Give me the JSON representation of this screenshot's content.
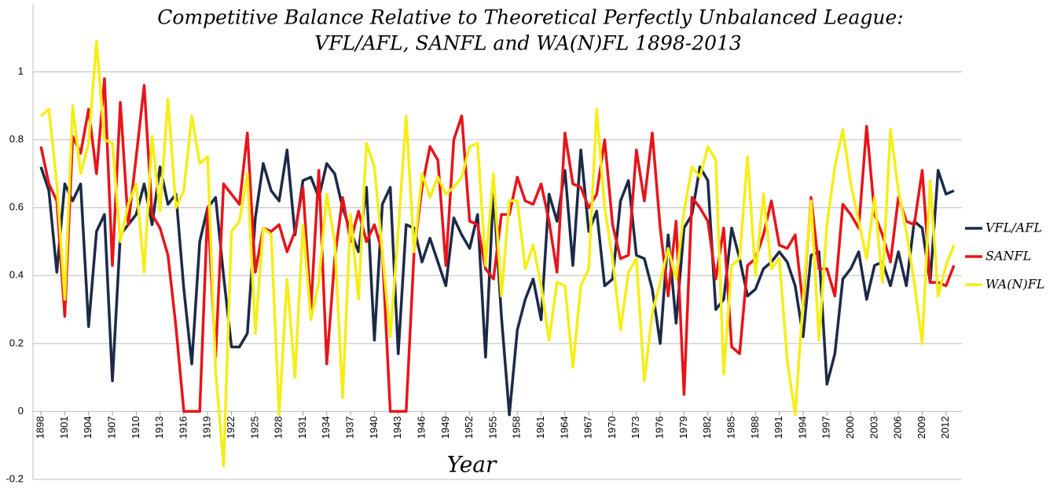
{
  "chart_data": {
    "type": "line",
    "title": [
      "Competitive Balance Relative to Theoretical Perfectly Unbalanced League:",
      "VFL/AFL, SANFL and WA(N)FL 1898-2013"
    ],
    "x_label": "Year",
    "x": [
      1898,
      1899,
      1900,
      1901,
      1902,
      1903,
      1904,
      1905,
      1906,
      1907,
      1908,
      1909,
      1910,
      1911,
      1912,
      1913,
      1914,
      1915,
      1916,
      1917,
      1918,
      1919,
      1920,
      1921,
      1922,
      1923,
      1924,
      1925,
      1926,
      1927,
      1928,
      1929,
      1930,
      1931,
      1932,
      1933,
      1934,
      1935,
      1936,
      1937,
      1938,
      1939,
      1940,
      1941,
      1942,
      1943,
      1944,
      1945,
      1946,
      1947,
      1948,
      1949,
      1950,
      1951,
      1952,
      1953,
      1954,
      1955,
      1956,
      1957,
      1958,
      1959,
      1960,
      1961,
      1962,
      1963,
      1964,
      1965,
      1966,
      1967,
      1968,
      1969,
      1970,
      1971,
      1972,
      1973,
      1974,
      1975,
      1976,
      1977,
      1978,
      1979,
      1980,
      1981,
      1982,
      1983,
      1984,
      1985,
      1986,
      1987,
      1988,
      1989,
      1990,
      1991,
      1992,
      1993,
      1994,
      1995,
      1996,
      1997,
      1998,
      1999,
      2000,
      2001,
      2002,
      2003,
      2004,
      2005,
      2006,
      2007,
      2008,
      2009,
      2010,
      2011,
      2012,
      2013
    ],
    "series": [
      {
        "name": "VFL/AFL",
        "color": "#1c2a48",
        "values": [
          0.72,
          0.65,
          0.41,
          0.67,
          0.62,
          0.67,
          0.25,
          0.53,
          0.58,
          0.09,
          0.52,
          0.55,
          0.58,
          0.67,
          0.55,
          0.72,
          0.61,
          0.64,
          0.36,
          0.14,
          0.5,
          0.6,
          0.63,
          0.4,
          0.19,
          0.19,
          0.23,
          0.57,
          0.73,
          0.65,
          0.62,
          0.77,
          0.52,
          0.68,
          0.69,
          0.63,
          0.73,
          0.7,
          0.6,
          0.53,
          0.47,
          0.66,
          0.21,
          0.61,
          0.66,
          0.17,
          0.55,
          0.54,
          0.44,
          0.51,
          0.44,
          0.37,
          0.57,
          0.52,
          0.48,
          0.58,
          0.16,
          0.65,
          0.28,
          -0.01,
          0.24,
          0.33,
          0.39,
          0.27,
          0.64,
          0.56,
          0.71,
          0.43,
          0.77,
          0.53,
          0.59,
          0.37,
          0.39,
          0.62,
          0.68,
          0.46,
          0.45,
          0.36,
          0.2,
          0.52,
          0.26,
          0.54,
          0.58,
          0.72,
          0.68,
          0.3,
          0.33,
          0.54,
          0.45,
          0.34,
          0.36,
          0.42,
          0.44,
          0.47,
          0.44,
          0.37,
          0.22,
          0.46,
          0.47,
          0.08,
          0.17,
          0.39,
          0.42,
          0.47,
          0.33,
          0.43,
          0.44,
          0.37,
          0.47,
          0.37,
          0.56,
          0.54,
          0.38,
          0.71,
          0.64,
          0.65
        ]
      },
      {
        "name": "SANFL",
        "color": "#e8141a",
        "values": [
          0.78,
          0.67,
          0.62,
          0.28,
          0.81,
          0.76,
          0.89,
          0.7,
          0.98,
          0.43,
          0.91,
          0.55,
          0.75,
          0.96,
          0.58,
          0.54,
          0.46,
          0.25,
          0,
          0,
          0,
          0.6,
          0.16,
          0.67,
          0.64,
          0.61,
          0.82,
          0.41,
          0.54,
          0.53,
          0.55,
          0.47,
          0.53,
          0.66,
          0.3,
          0.71,
          0.14,
          0.45,
          0.63,
          0.5,
          0.59,
          0.5,
          0.55,
          0.47,
          0,
          0,
          0,
          0.47,
          0.66,
          0.78,
          0.74,
          0.43,
          0.8,
          0.87,
          0.56,
          0.55,
          0.42,
          0.39,
          0.58,
          0.58,
          0.69,
          0.62,
          0.61,
          0.67,
          0.56,
          0.41,
          0.82,
          0.67,
          0.66,
          0.6,
          0.64,
          0.8,
          0.55,
          0.45,
          0.46,
          0.77,
          0.62,
          0.82,
          0.54,
          0.34,
          0.56,
          0.05,
          0.63,
          0.6,
          0.56,
          0.39,
          0.54,
          0.19,
          0.17,
          0.43,
          0.45,
          0.52,
          0.62,
          0.49,
          0.48,
          0.52,
          0.31,
          0.63,
          0.42,
          0.42,
          0.34,
          0.61,
          0.58,
          0.54,
          0.84,
          0.58,
          0.52,
          0.44,
          0.63,
          0.56,
          0.55,
          0.71,
          0.38,
          0.38,
          0.37,
          0.43
        ]
      },
      {
        "name": "WA(N)FL",
        "color": "#f5ee17",
        "values": [
          0.87,
          0.89,
          0.67,
          0.33,
          0.9,
          0.7,
          0.79,
          1.09,
          0.8,
          0.79,
          0.5,
          0.61,
          0.67,
          0.41,
          0.81,
          0.59,
          0.92,
          0.6,
          0.65,
          0.87,
          0.73,
          0.75,
          0.12,
          -0.16,
          0.53,
          0.56,
          0.7,
          0.23,
          0.54,
          0.52,
          -0.01,
          0.39,
          0.1,
          0.55,
          0.27,
          0.38,
          0.64,
          0.5,
          0.04,
          0.58,
          0.33,
          0.79,
          0.72,
          0.47,
          0.22,
          0.53,
          0.87,
          0.47,
          0.7,
          0.63,
          0.69,
          0.64,
          0.66,
          0.69,
          0.78,
          0.79,
          0.43,
          0.7,
          0.34,
          0.62,
          0.62,
          0.42,
          0.49,
          0.37,
          0.21,
          0.38,
          0.37,
          0.13,
          0.37,
          0.42,
          0.89,
          0.6,
          0.45,
          0.24,
          0.41,
          0.45,
          0.09,
          0.29,
          0.38,
          0.48,
          0.39,
          0.59,
          0.72,
          0.69,
          0.78,
          0.74,
          0.11,
          0.43,
          0.45,
          0.75,
          0.4,
          0.64,
          0.42,
          0.45,
          0.15,
          -0.01,
          0.33,
          0.62,
          0.21,
          0.55,
          0.72,
          0.83,
          0.67,
          0.56,
          0.45,
          0.63,
          0.38,
          0.83,
          0.65,
          0.53,
          0.38,
          0.2,
          0.68,
          0.34,
          0.43,
          0.49
        ]
      }
    ],
    "xlim": [
      1897,
      2014
    ],
    "xticks": [
      1898,
      1901,
      1904,
      1907,
      1910,
      1913,
      1916,
      1919,
      1922,
      1925,
      1928,
      1931,
      1934,
      1937,
      1940,
      1943,
      1946,
      1949,
      1952,
      1955,
      1958,
      1961,
      1964,
      1967,
      1970,
      1973,
      1976,
      1979,
      1982,
      1985,
      1988,
      1991,
      1994,
      1997,
      2000,
      2003,
      2006,
      2009,
      2012
    ],
    "ylim": [
      -0.2,
      1.2
    ],
    "yticks": [
      -0.2,
      0,
      0.2,
      0.4,
      0.6,
      0.8,
      1
    ],
    "grid": true,
    "legend": "right"
  }
}
